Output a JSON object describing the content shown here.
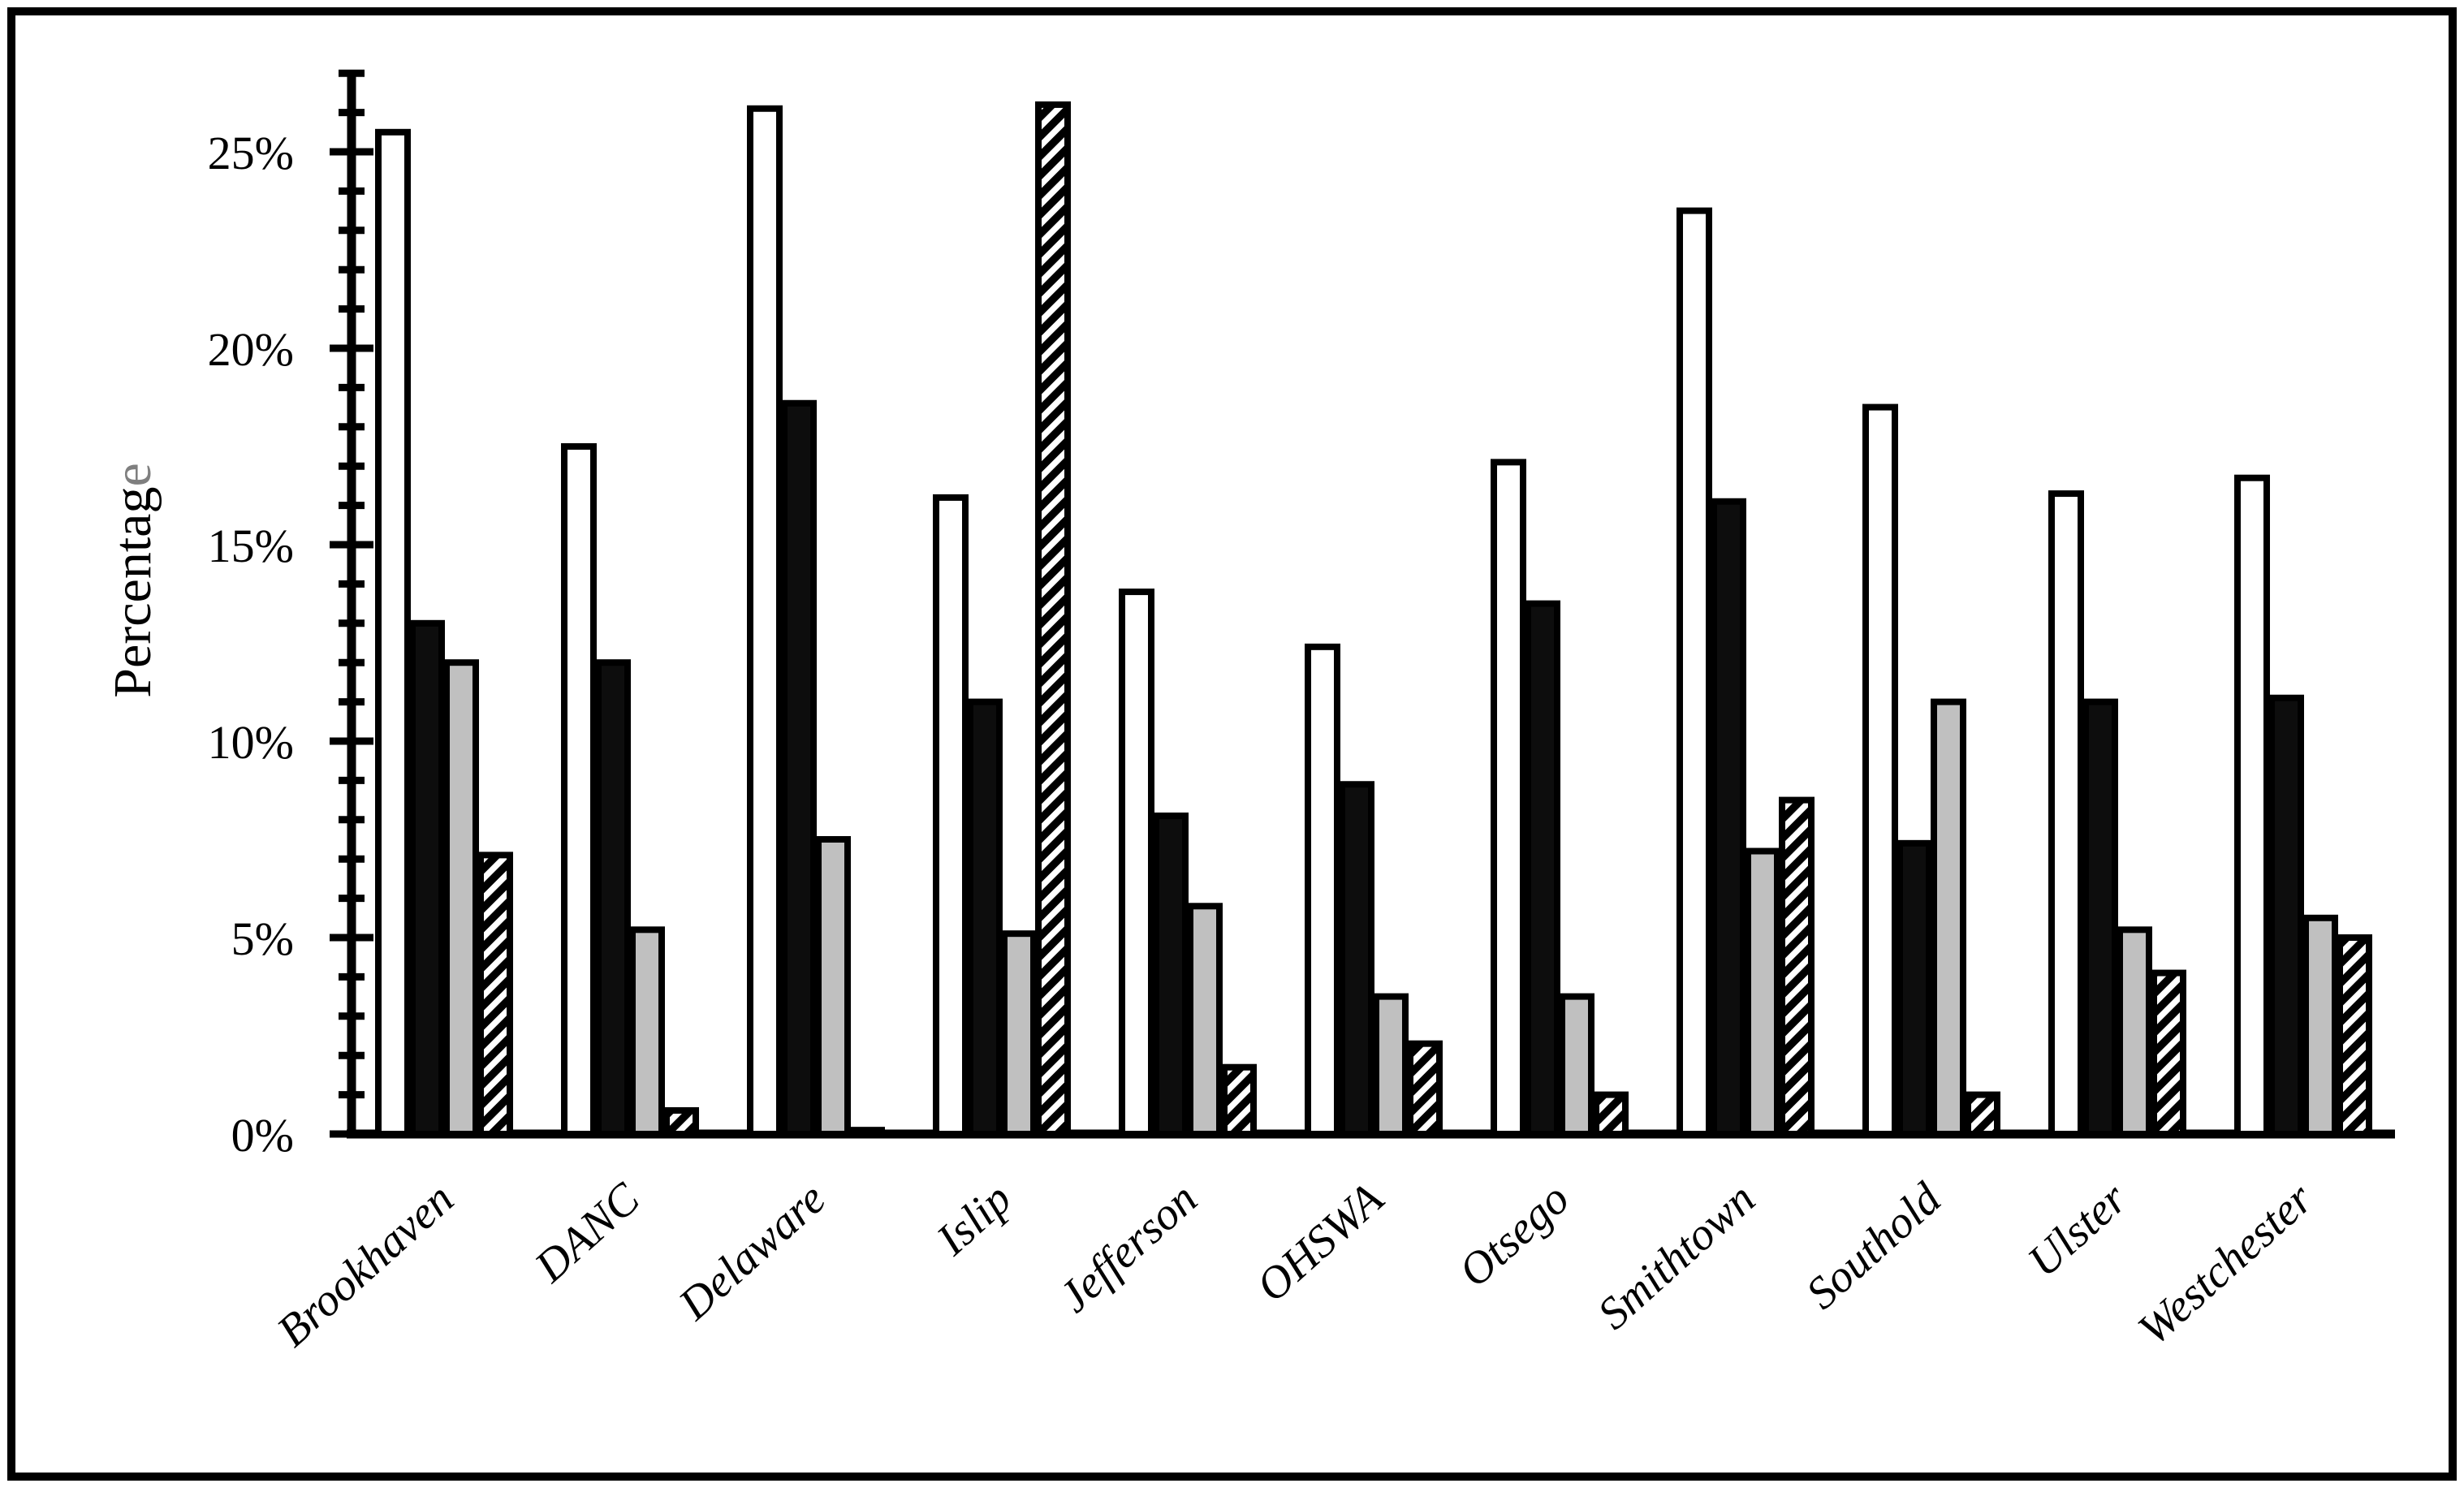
{
  "figure": {
    "background": "#ffffff",
    "border_color": "#000000"
  },
  "colors": {
    "bar_outline": "#000000",
    "white_fill": "#ffffff",
    "black_fill": "#0d0d0d",
    "gray_fill": "#c0c0c0",
    "axis": "#000000",
    "text": "#000000",
    "ylabel_last_char": "#7f7f7f"
  },
  "chart_data": {
    "type": "bar",
    "title": "",
    "xlabel": "",
    "ylabel": "Percentage",
    "categories": [
      "Brookhaven",
      "DANC",
      "Delaware",
      "Islip",
      "Jefferson",
      "OHSWA",
      "Otsego",
      "Smithtown",
      "Southold",
      "Ulster",
      "Westchester"
    ],
    "series": [
      {
        "name": "white",
        "fill_key": "white_fill",
        "pattern": "solid",
        "values": [
          25.5,
          17.5,
          26.1,
          16.2,
          13.8,
          12.4,
          17.1,
          23.5,
          18.5,
          16.3,
          16.7
        ]
      },
      {
        "name": "black",
        "fill_key": "black_fill",
        "pattern": "solid",
        "values": [
          13.0,
          12.0,
          18.6,
          11.0,
          8.1,
          8.9,
          13.5,
          16.1,
          7.4,
          11.0,
          11.1
        ]
      },
      {
        "name": "gray",
        "fill_key": "gray_fill",
        "pattern": "solid",
        "values": [
          12.0,
          5.2,
          7.5,
          5.1,
          5.8,
          3.5,
          3.5,
          7.2,
          11.0,
          5.2,
          5.5
        ]
      },
      {
        "name": "hatched",
        "fill_key": "white_fill",
        "pattern": "diagonal-stripes-up-right",
        "values": [
          7.1,
          0.6,
          0.1,
          26.2,
          1.7,
          2.3,
          1.0,
          8.5,
          1.0,
          4.1,
          5.0
        ]
      }
    ],
    "ylim": [
      0,
      27
    ],
    "yticks_major": [
      0,
      5,
      10,
      15,
      20,
      25
    ],
    "ytick_labels": [
      "0%",
      "5%",
      "10%",
      "15%",
      "20%",
      "25%"
    ],
    "ytick_minor_step": 1,
    "grid": false,
    "legend": "none",
    "xtick_rotation_deg": 42,
    "bar_unit": "percent"
  }
}
